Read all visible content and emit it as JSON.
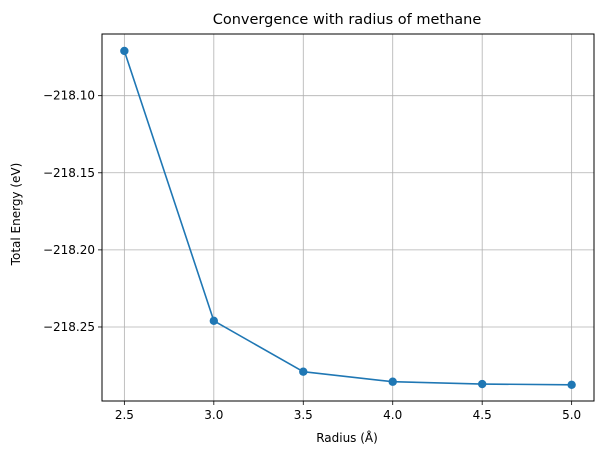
{
  "chart_data": {
    "type": "line",
    "title": "Convergence with radius of methane",
    "xlabel": "Radius (Å)",
    "ylabel": "Total Energy (eV)",
    "x": [
      2.5,
      3.0,
      3.5,
      4.0,
      4.5,
      5.0
    ],
    "series": [
      {
        "values": [
          -218.071,
          -218.246,
          -218.279,
          -218.2855,
          -218.287,
          -218.2875
        ],
        "color": "#1f77b4",
        "marker": "circle"
      }
    ],
    "xlim": [
      2.375,
      5.125
    ],
    "ylim": [
      -218.298,
      -218.06
    ],
    "xticks": [
      2.5,
      3.0,
      3.5,
      4.0,
      4.5,
      5.0
    ],
    "xtick_labels": [
      "2.5",
      "3.0",
      "3.5",
      "4.0",
      "4.5",
      "5.0"
    ],
    "yticks": [
      -218.1,
      -218.15,
      -218.2,
      -218.25
    ],
    "ytick_labels": [
      "−218.10",
      "−218.15",
      "−218.20",
      "−218.25"
    ],
    "grid": true,
    "legend": "none"
  }
}
